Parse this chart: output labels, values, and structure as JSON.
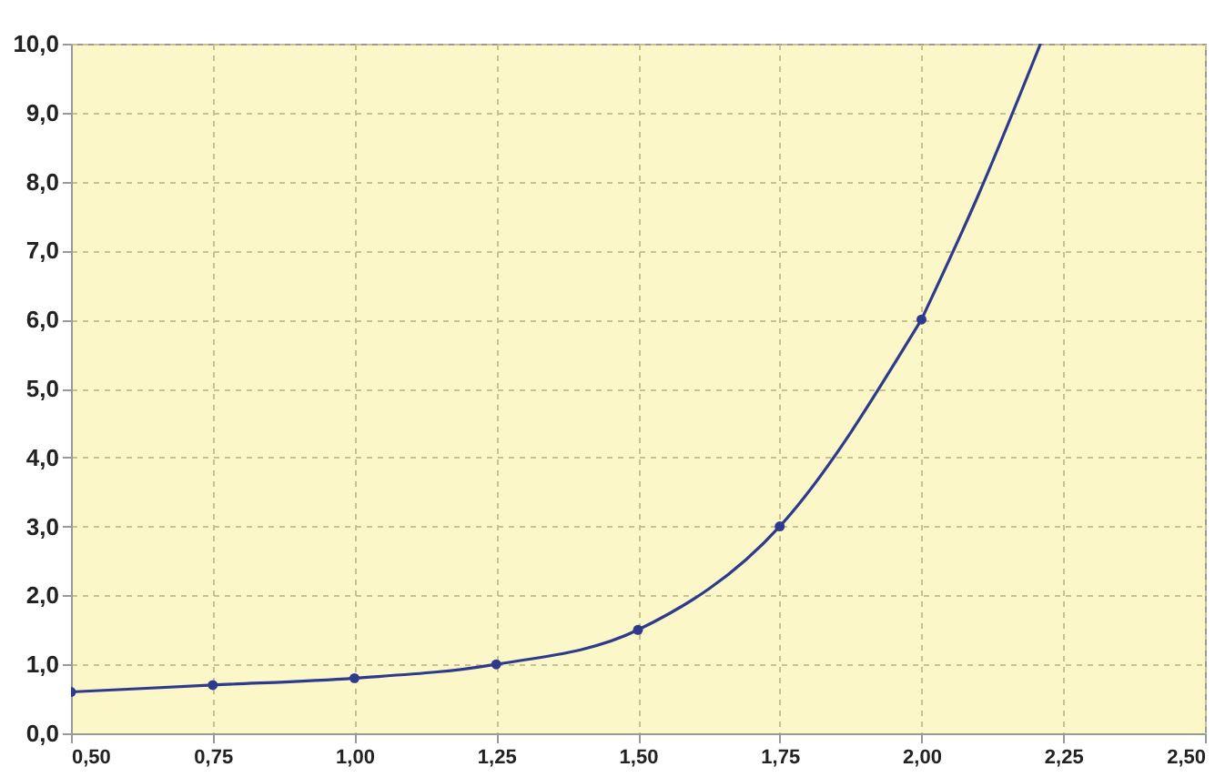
{
  "chart_data": {
    "type": "line",
    "x": [
      0.5,
      0.75,
      1.0,
      1.25,
      1.5,
      1.75,
      2.0
    ],
    "series": [
      {
        "color": "#2e3a8c",
        "values": [
          0.6,
          0.7,
          0.8,
          1.0,
          1.5,
          3.0,
          6.0
        ],
        "marker": "circle"
      },
      {
        "color": "#2e3a8c",
        "x": [
          2.0,
          2.1,
          2.21
        ],
        "values": [
          6.0,
          7.8,
          10.0
        ],
        "marker": "none"
      }
    ],
    "xlim": [
      0.5,
      2.5
    ],
    "xticks": [
      {
        "value": 0.5,
        "label": "0,50"
      },
      {
        "value": 0.75,
        "label": "0,75"
      },
      {
        "value": 1.0,
        "label": "1,00"
      },
      {
        "value": 1.25,
        "label": "1,25"
      },
      {
        "value": 1.5,
        "label": "1,50"
      },
      {
        "value": 1.75,
        "label": "1,75"
      },
      {
        "value": 2.0,
        "label": "2,00"
      },
      {
        "value": 2.25,
        "label": "2,25"
      },
      {
        "value": 2.5,
        "label": "2,50"
      }
    ],
    "ylim": [
      0,
      10
    ],
    "yticks": [
      {
        "value": 0,
        "label": "0,0"
      },
      {
        "value": 1,
        "label": "1,0"
      },
      {
        "value": 2,
        "label": "2,0"
      },
      {
        "value": 3,
        "label": "3,0"
      },
      {
        "value": 4,
        "label": "4,0"
      },
      {
        "value": 5,
        "label": "5,0"
      },
      {
        "value": 6,
        "label": "6,0"
      },
      {
        "value": 7,
        "label": "7,0"
      },
      {
        "value": 8,
        "label": "8,0"
      },
      {
        "value": 9,
        "label": "9,0"
      },
      {
        "value": 10,
        "label": "10,0"
      }
    ],
    "grid": true,
    "line_style": "solid"
  }
}
